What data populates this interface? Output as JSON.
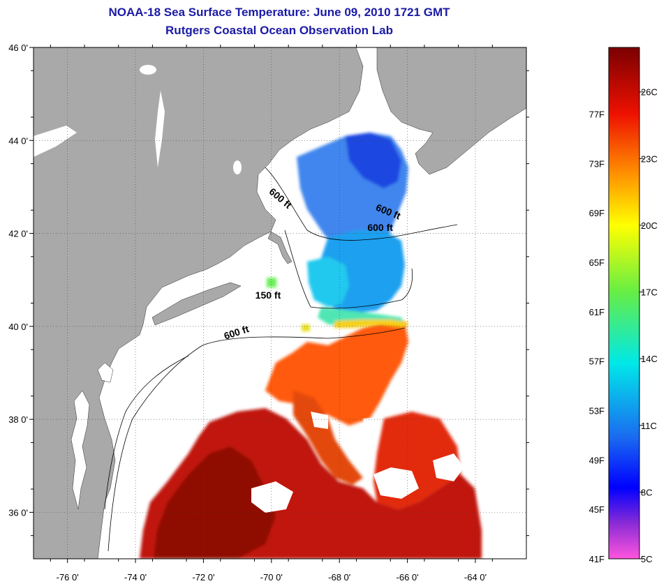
{
  "title": {
    "line1": "NOAA-18 Sea Surface Temperature:  June 09, 2010 1721 GMT",
    "line2": "Rutgers Coastal Ocean Observation Lab"
  },
  "map": {
    "lon_range": [
      -77,
      -62.5
    ],
    "lat_range": [
      35,
      46
    ],
    "lon_ticks": [
      {
        "value": -76,
        "label": "-76 0'"
      },
      {
        "value": -74,
        "label": "-74 0'"
      },
      {
        "value": -72,
        "label": "-72 0'"
      },
      {
        "value": -70,
        "label": "-70 0'"
      },
      {
        "value": -68,
        "label": "-68 0'"
      },
      {
        "value": -66,
        "label": "-66 0'"
      },
      {
        "value": -64,
        "label": "-64 0'"
      }
    ],
    "lat_ticks": [
      {
        "value": 46,
        "label": "46 0'"
      },
      {
        "value": 44,
        "label": "44 0'"
      },
      {
        "value": 42,
        "label": "42 0'"
      },
      {
        "value": 40,
        "label": "40 0'"
      },
      {
        "value": 38,
        "label": "38 0'"
      },
      {
        "value": 36,
        "label": "36 0'"
      }
    ],
    "grid": "dotted",
    "land_color": "#a9a9a9",
    "ocean_color": "#ffffff",
    "isobath_labels": [
      {
        "text": "600 ft",
        "lon": -69.8,
        "lat": 42.7,
        "angle": 40
      },
      {
        "text": "600 ft",
        "lon": -66.6,
        "lat": 42.4,
        "angle": 22
      },
      {
        "text": "600 ft",
        "lon": -66.8,
        "lat": 42.05,
        "angle": 0
      },
      {
        "text": "150 ft",
        "lon": -70.1,
        "lat": 40.6,
        "angle": 0
      },
      {
        "text": "600 ft",
        "lon": -71.0,
        "lat": 39.8,
        "angle": -18
      }
    ]
  },
  "colorbar": {
    "range_c": [
      5,
      28
    ],
    "stops": [
      {
        "c": 5,
        "color": "#ff55dd"
      },
      {
        "c": 6.6,
        "color": "#8a2bd6"
      },
      {
        "c": 8.2,
        "color": "#0000ff"
      },
      {
        "c": 10.5,
        "color": "#1a6cf0"
      },
      {
        "c": 13.8,
        "color": "#00e8e8"
      },
      {
        "c": 17,
        "color": "#66ee44"
      },
      {
        "c": 20,
        "color": "#ffff00"
      },
      {
        "c": 22.5,
        "color": "#ff8800"
      },
      {
        "c": 25,
        "color": "#ee1100"
      },
      {
        "c": 28,
        "color": "#7a0000"
      }
    ],
    "f_labels": [
      {
        "c": 25,
        "label": "77F"
      },
      {
        "c": 22.78,
        "label": "73F"
      },
      {
        "c": 20.56,
        "label": "69F"
      },
      {
        "c": 18.33,
        "label": "65F"
      },
      {
        "c": 16.11,
        "label": "61F"
      },
      {
        "c": 13.89,
        "label": "57F"
      },
      {
        "c": 11.67,
        "label": "53F"
      },
      {
        "c": 9.44,
        "label": "49F"
      },
      {
        "c": 7.22,
        "label": "45F"
      },
      {
        "c": 5,
        "label": "41F"
      }
    ],
    "c_labels": [
      {
        "c": 26,
        "label": "26C"
      },
      {
        "c": 23,
        "label": "23C"
      },
      {
        "c": 20,
        "label": "20C"
      },
      {
        "c": 17,
        "label": "17C"
      },
      {
        "c": 14,
        "label": "14C"
      },
      {
        "c": 11,
        "label": "11C"
      },
      {
        "c": 8,
        "label": "8C"
      },
      {
        "c": 5,
        "label": "5C"
      }
    ]
  }
}
